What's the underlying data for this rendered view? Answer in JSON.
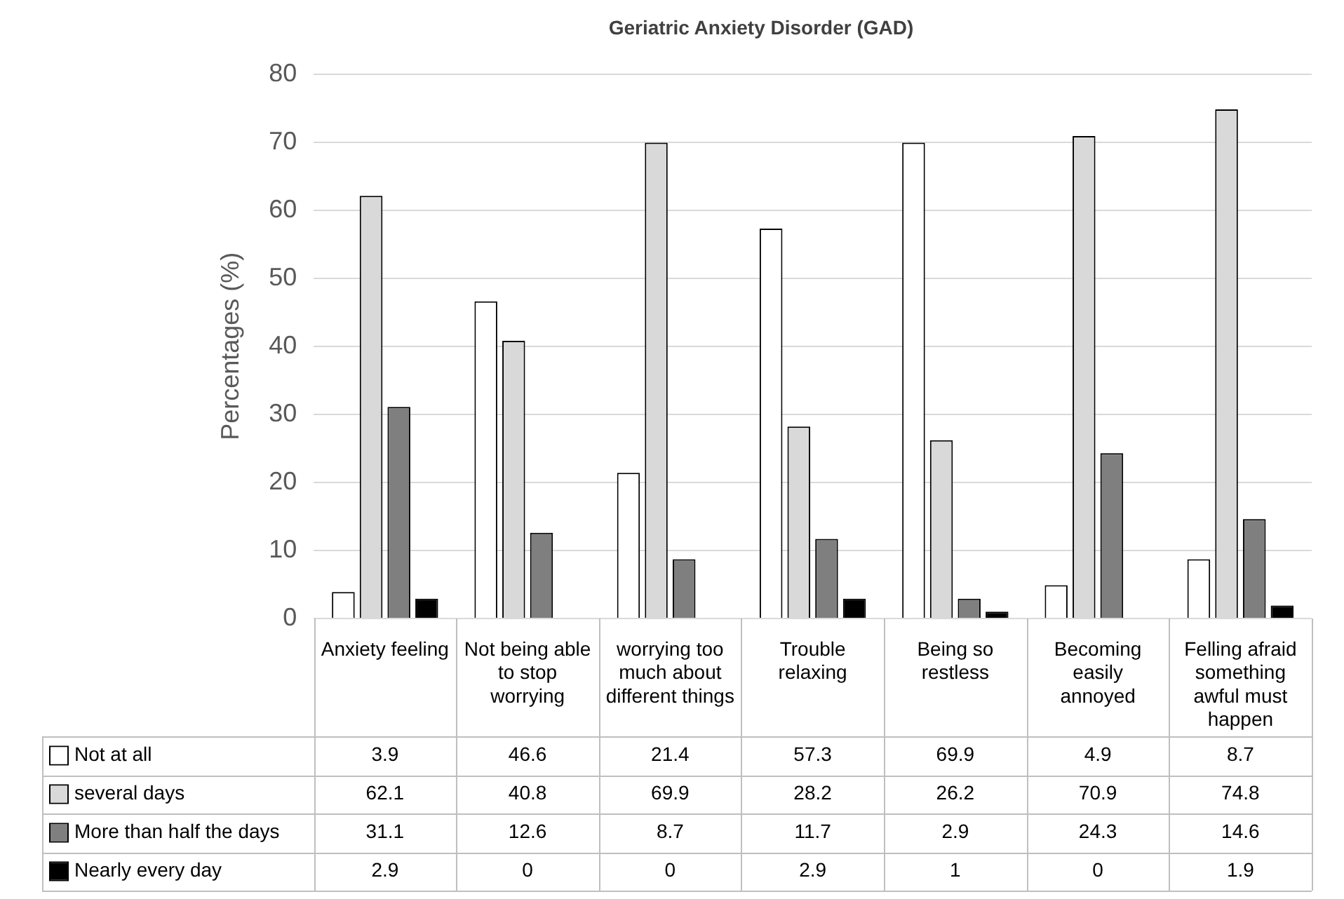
{
  "chart_data": {
    "type": "bar",
    "title": "Geriatric Anxiety Disorder (GAD)",
    "ylabel": "Percentages (%)",
    "categories": [
      "Anxiety feeling",
      "Not being able to stop worrying",
      "worrying too much about different things",
      "Trouble relaxing",
      "Being so restless",
      "Becoming easily annoyed",
      "Felling afraid something awful must happen"
    ],
    "series": [
      {
        "name": "Not at all",
        "color": "#ffffff",
        "values": [
          3.9,
          46.6,
          21.4,
          57.3,
          69.9,
          4.9,
          8.7
        ]
      },
      {
        "name": "several days",
        "color": "#d9d9d9",
        "values": [
          62.1,
          40.8,
          69.9,
          28.2,
          26.2,
          70.9,
          74.8
        ]
      },
      {
        "name": "More than half the days",
        "color": "#7f7f7f",
        "values": [
          31.1,
          12.6,
          8.7,
          11.7,
          2.9,
          24.3,
          14.6
        ]
      },
      {
        "name": "Nearly every day",
        "color": "#000000",
        "values": [
          2.9,
          0,
          0,
          2.9,
          1,
          0,
          1.9
        ]
      }
    ],
    "ylim": [
      0,
      80
    ],
    "yticks": [
      0,
      10,
      20,
      30,
      40,
      50,
      60,
      70,
      80
    ],
    "grid": "y",
    "legend": "bottom",
    "data_labels": true
  }
}
